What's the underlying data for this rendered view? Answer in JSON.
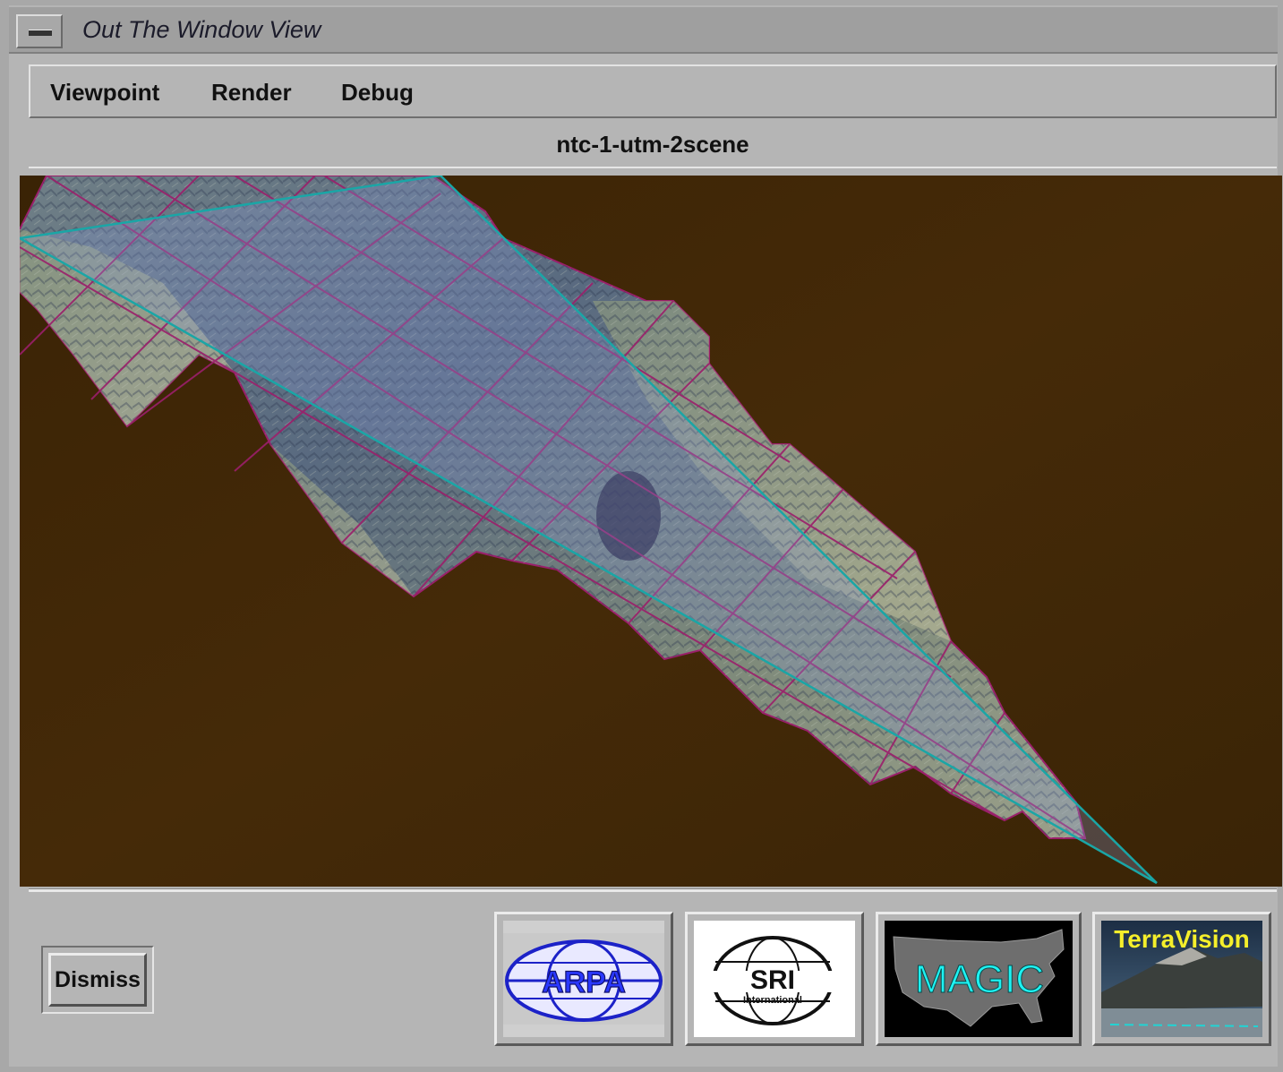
{
  "window": {
    "title": "Out The Window View"
  },
  "menubar": {
    "items": [
      "Viewpoint",
      "Render",
      "Debug"
    ]
  },
  "scene": {
    "name": "ntc-1-utm-2scene"
  },
  "buttons": {
    "dismiss": "Dismiss"
  },
  "logos": {
    "arpa": "ARPA",
    "sri": "SRI",
    "sri_sub": "International",
    "magic": "MAGIC",
    "terravision": "TerraVision"
  },
  "colors": {
    "background_terrain": "#3e2606",
    "tile_grid": "#9b1f6b",
    "frustum_line": "#1aa6a6",
    "frustum_fill": "#8a9ad8"
  }
}
